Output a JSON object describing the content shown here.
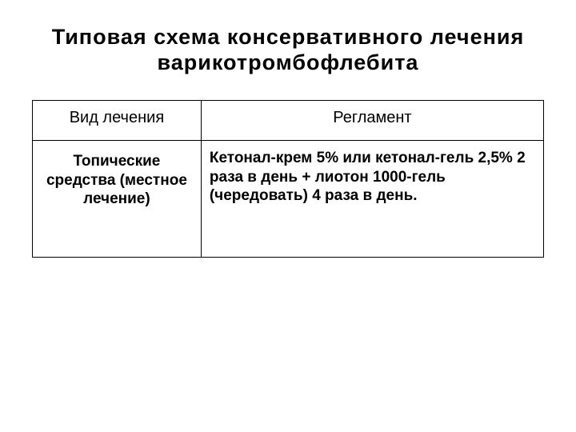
{
  "title": "Типовая схема консервативного лечения варикотромбофлебита",
  "table": {
    "columns": [
      "Вид лечения",
      "Регламент"
    ],
    "column_widths_pct": [
      33,
      67
    ],
    "header_font_weight": "normal",
    "header_fontsize": 20,
    "body_font_weight": "bold",
    "body_fontsize": 19,
    "border_color": "#000000",
    "border_width": 1.5,
    "rows": [
      {
        "type": "Топические средства (местное лечение)",
        "regimen": "Кетонал-крем 5% или кетонал-гель 2,5% 2 раза в день + лиотон 1000-гель (чередовать) 4 раза в день."
      }
    ]
  },
  "background_color": "#ffffff",
  "title_fontsize": 27
}
